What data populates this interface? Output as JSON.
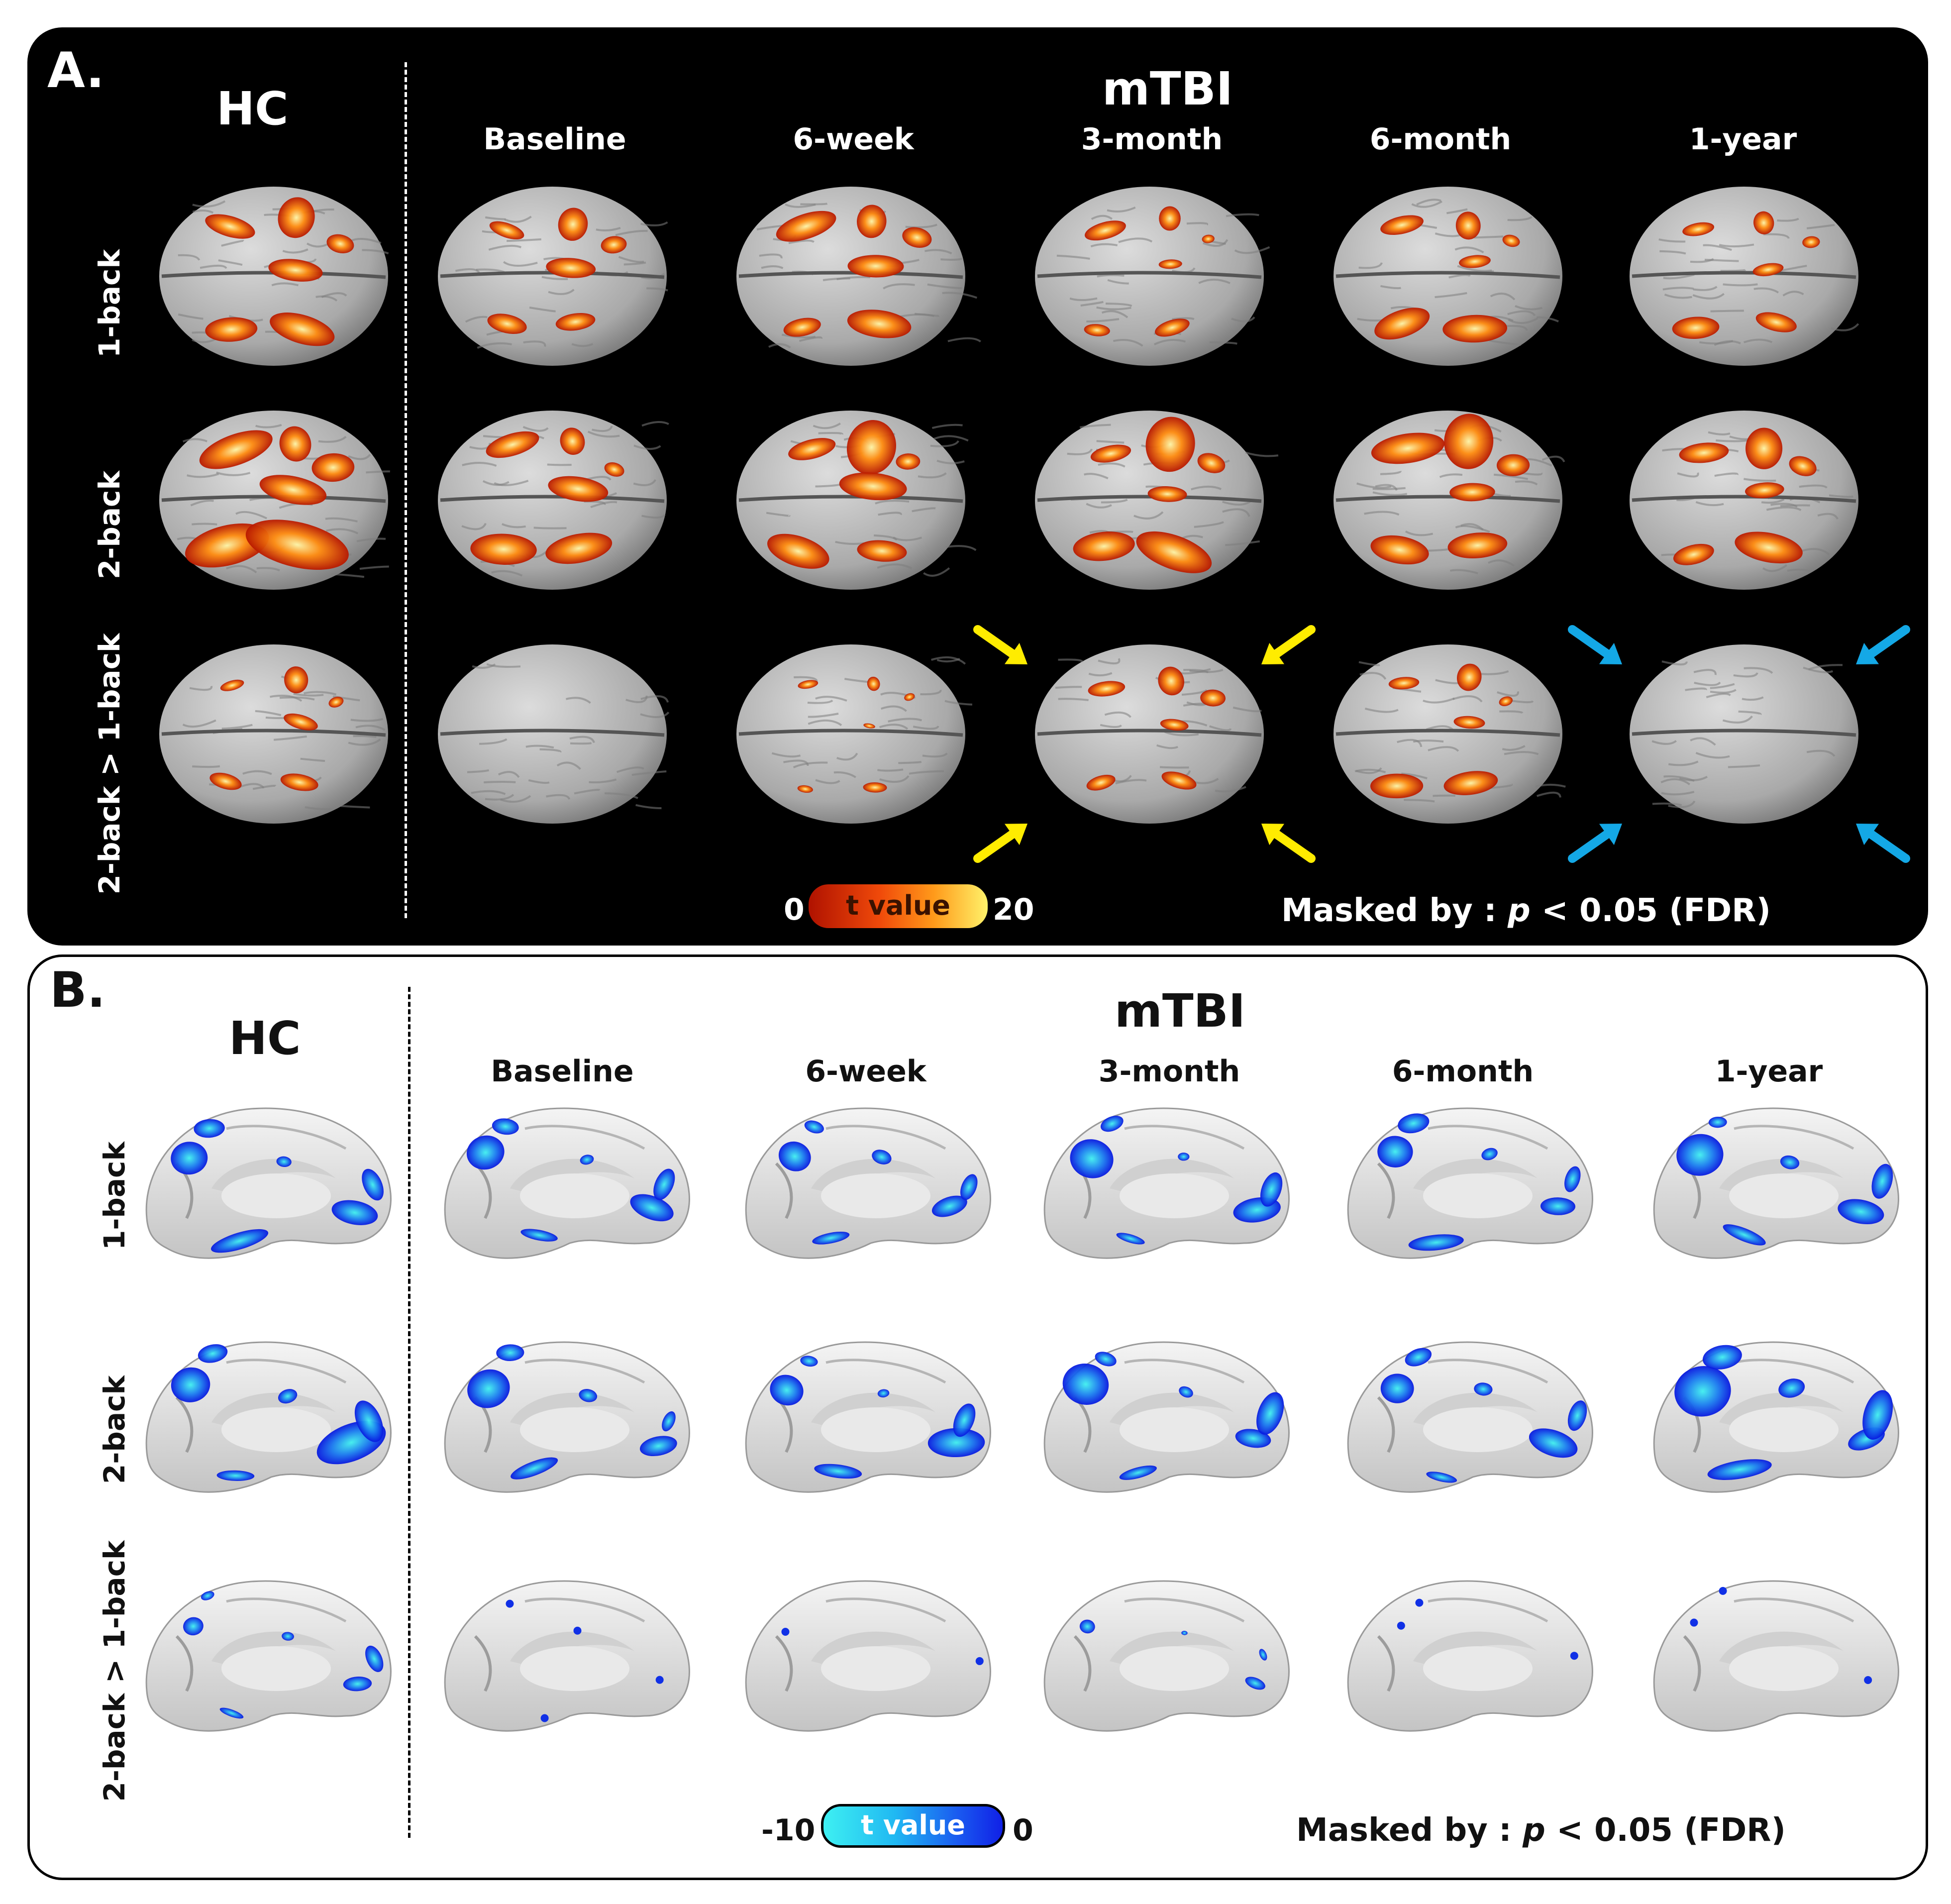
{
  "figure": {
    "panels": [
      {
        "letter": "A.",
        "control_label": "HC",
        "group_label": "mTBI",
        "timepoints": [
          "Baseline",
          "6-week",
          "3-month",
          "6-month",
          "1-year"
        ],
        "rows": [
          "1-back",
          "2-back",
          "2-back > 1-back"
        ],
        "view": "dorsal brain surface",
        "colors": {
          "background": "#000000",
          "cortex": "#b9b9b9",
          "activation_low": "#a01000",
          "activation_mid": "#ff6a00",
          "activation_high": "#fff1a0"
        },
        "colorbar": {
          "min": "0",
          "label": "t value",
          "max": "20"
        },
        "mask_prefix": "Masked by :",
        "mask_p": "p",
        "mask_suffix": "< 0.05 (FDR)",
        "annotations": [
          {
            "cell": "2-back > 1-back / 3-month",
            "arrows": 4,
            "color": "#ffec00"
          },
          {
            "cell": "2-back > 1-back / 1-year",
            "arrows": 4,
            "color": "#14a8e6"
          }
        ]
      },
      {
        "letter": "B.",
        "control_label": "HC",
        "group_label": "mTBI",
        "timepoints": [
          "Baseline",
          "6-week",
          "3-month",
          "6-month",
          "1-year"
        ],
        "rows": [
          "1-back",
          "2-back",
          "2-back > 1-back"
        ],
        "view": "medial brain surface",
        "colors": {
          "background": "#ffffff",
          "cortex": "#e4e4e4",
          "deactivation_low": "#0018e6",
          "deactivation_high": "#33e6ee"
        },
        "colorbar": {
          "min": "-10",
          "label": "t value",
          "max": "0"
        },
        "mask_prefix": "Masked by :",
        "mask_p": "p",
        "mask_suffix": "< 0.05 (FDR)"
      }
    ]
  }
}
